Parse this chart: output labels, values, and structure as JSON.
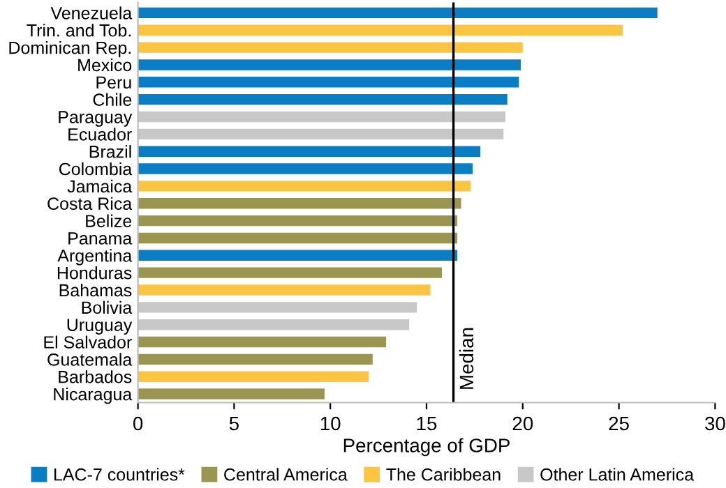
{
  "chart_data": {
    "type": "bar",
    "orientation": "horizontal",
    "xlabel": "Percentage of GDP",
    "categories": [
      "Venezuela",
      "Trin. and Tob.",
      "Dominican Rep.",
      "Mexico",
      "Peru",
      "Chile",
      "Paraguay",
      "Ecuador",
      "Brazil",
      "Colombia",
      "Jamaica",
      "Costa Rica",
      "Belize",
      "Panama",
      "Argentina",
      "Honduras",
      "Bahamas",
      "Bolivia",
      "Uruguay",
      "El Salvador",
      "Guatemala",
      "Barbados",
      "Nicaragua"
    ],
    "series": [
      {
        "name": "LAC-7 countries*",
        "color": "#0b7dc2",
        "values": [
          27.0,
          null,
          null,
          19.9,
          19.8,
          19.2,
          null,
          null,
          17.8,
          17.4,
          null,
          null,
          null,
          null,
          16.6,
          null,
          null,
          null,
          null,
          null,
          null,
          null,
          null
        ]
      },
      {
        "name": "Central America",
        "color": "#9b9552",
        "values": [
          null,
          null,
          null,
          null,
          null,
          null,
          null,
          null,
          null,
          null,
          null,
          16.8,
          16.6,
          16.6,
          null,
          15.8,
          null,
          null,
          null,
          12.9,
          12.2,
          null,
          9.7
        ]
      },
      {
        "name": "The Caribbean",
        "color": "#fcc443",
        "values": [
          null,
          25.2,
          20.0,
          null,
          null,
          null,
          null,
          null,
          null,
          null,
          17.3,
          null,
          null,
          null,
          null,
          null,
          15.2,
          null,
          null,
          null,
          null,
          12.0,
          null
        ]
      },
      {
        "name": "Other Latin America",
        "color": "#c8c8c8",
        "values": [
          null,
          null,
          null,
          null,
          null,
          null,
          19.1,
          19.0,
          null,
          null,
          null,
          null,
          null,
          null,
          null,
          null,
          null,
          14.5,
          14.1,
          null,
          null,
          null,
          null
        ]
      }
    ],
    "xlim": [
      0,
      30
    ],
    "xticks": [
      0,
      5,
      10,
      15,
      20,
      25,
      30
    ],
    "ref_lines": [
      {
        "axis": "x",
        "value": 16.4,
        "label": "Median",
        "color": "#000000"
      }
    ],
    "grid": false,
    "legend": "bottom"
  }
}
